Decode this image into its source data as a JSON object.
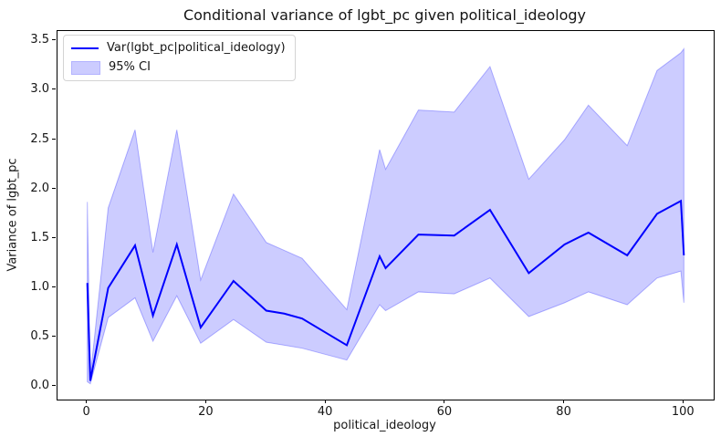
{
  "figure": {
    "title": "Conditional variance of lgbt_pc given political_ideology",
    "xlabel": "political_ideology",
    "ylabel": "Variance of lgbt_pc"
  },
  "legend": {
    "line_label": "Var(lgbt_pc|political_ideology)",
    "ci_label": "95% CI"
  },
  "colors": {
    "line": "#0000ff",
    "band_fill": "rgba(0,0,255,0.2)",
    "band_edge": "rgba(0,0,255,0.28)",
    "text": "#151515",
    "spine": "#000000",
    "legend_border": "#d4d4d4"
  },
  "chart_data": {
    "type": "line",
    "title": "Conditional variance of lgbt_pc given political_ideology",
    "xlabel": "political_ideology",
    "ylabel": "Variance of lgbt_pc",
    "legend_position": "upper left",
    "grid": false,
    "xlim": [
      -5,
      105
    ],
    "ylim": [
      -0.13,
      3.6
    ],
    "xticks": [
      0,
      20,
      40,
      60,
      80,
      100
    ],
    "yticks": [
      0.0,
      0.5,
      1.0,
      1.5,
      2.0,
      2.5,
      3.0,
      3.5
    ],
    "ytick_labels": [
      "0.0",
      "0.5",
      "1.0",
      "1.5",
      "2.0",
      "2.5",
      "3.0",
      "3.5"
    ],
    "x": [
      0,
      0.5,
      3.5,
      8,
      11,
      15,
      19,
      24.5,
      30,
      33,
      36,
      43.5,
      49,
      50,
      55.5,
      61.5,
      67.5,
      74,
      80,
      84,
      90.5,
      95.5,
      99.5,
      100
    ],
    "series": [
      {
        "name": "Var(lgbt_pc|political_ideology)",
        "values": [
          1.05,
          0.06,
          1.0,
          1.43,
          0.72,
          1.44,
          0.6,
          1.07,
          0.77,
          0.74,
          0.69,
          0.42,
          1.32,
          1.2,
          1.54,
          1.53,
          1.79,
          1.15,
          1.44,
          1.56,
          1.33,
          1.75,
          1.88,
          1.33
        ]
      },
      {
        "name": "95% CI upper",
        "values": [
          1.87,
          0.1,
          1.81,
          2.6,
          1.36,
          2.6,
          1.08,
          1.95,
          1.46,
          1.38,
          1.3,
          0.78,
          2.4,
          2.2,
          2.8,
          2.78,
          3.24,
          2.1,
          2.5,
          2.85,
          2.44,
          3.2,
          3.38,
          3.42
        ]
      },
      {
        "name": "95% CI lower",
        "values": [
          0.05,
          0.03,
          0.7,
          0.9,
          0.46,
          0.92,
          0.44,
          0.68,
          0.45,
          0.42,
          0.39,
          0.27,
          0.83,
          0.77,
          0.96,
          0.94,
          1.1,
          0.71,
          0.85,
          0.96,
          0.83,
          1.1,
          1.17,
          0.85
        ]
      }
    ]
  }
}
